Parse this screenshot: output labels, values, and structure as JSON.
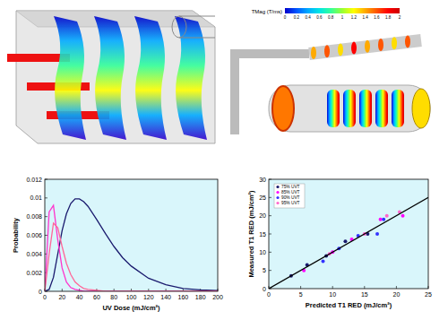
{
  "colorbar": {
    "label": "TMag (T/ms)",
    "ticks": [
      0,
      0.2,
      0.4,
      0.6,
      0.8,
      1,
      1.2,
      1.4,
      1.6,
      1.8,
      2
    ]
  },
  "chart_data": [
    {
      "type": "line",
      "x_label": "UV Dose (mJ/cm²)",
      "y_label": "Probability",
      "x": [
        0,
        5,
        10,
        15,
        20,
        25,
        30,
        35,
        40,
        45,
        50,
        60,
        70,
        80,
        90,
        100,
        120,
        140,
        160,
        180,
        200
      ],
      "series": [
        {
          "color": "#1a1a6e",
          "values": [
            0,
            0.0002,
            0.0015,
            0.004,
            0.0065,
            0.0083,
            0.0094,
            0.0099,
            0.0099,
            0.0096,
            0.0091,
            0.0077,
            0.0062,
            0.0048,
            0.0036,
            0.0027,
            0.0014,
            0.0007,
            0.0003,
            0.00015,
            7e-05
          ]
        },
        {
          "color": "#ff33cc",
          "values": [
            0,
            0.0085,
            0.0092,
            0.0055,
            0.0025,
            0.001,
            0.0004,
            0.0002,
            0.0001,
            0,
            0,
            0,
            0,
            0,
            0,
            0,
            0,
            0,
            0,
            0,
            0
          ]
        },
        {
          "color": "#ff6699",
          "values": [
            0,
            0.004,
            0.0073,
            0.0068,
            0.0048,
            0.003,
            0.0018,
            0.001,
            0.0006,
            0.0003,
            0.0002,
            0.0001,
            0,
            0,
            0,
            0,
            0,
            0,
            0,
            0,
            0
          ]
        }
      ],
      "xlim": [
        0,
        200
      ],
      "ylim": [
        0,
        0.012
      ],
      "xticks": [
        0,
        20,
        40,
        60,
        80,
        100,
        120,
        140,
        160,
        180,
        200
      ],
      "yticks": [
        0,
        0.002,
        0.004,
        0.006,
        0.008,
        0.01,
        0.012
      ]
    },
    {
      "type": "scatter",
      "x_label": "Predicted T1 RED (mJ/cm²)",
      "y_label": "Measured T1 RED (mJ/cm²)",
      "legend": "upper left",
      "series": [
        {
          "name": "75% UVT",
          "color": "#1a1a6e",
          "marker": "circle",
          "x": [
            3.5,
            6,
            9,
            12,
            15.5
          ],
          "values": [
            3.5,
            6.5,
            9,
            13,
            15
          ]
        },
        {
          "name": "85% UVT",
          "color": "#ff00ff",
          "marker": "circle",
          "x": [
            5.5,
            10,
            13,
            17.5,
            21
          ],
          "values": [
            5,
            10,
            13.5,
            19,
            20
          ]
        },
        {
          "name": "90% UVT",
          "color": "#3333ff",
          "marker": "circle",
          "x": [
            8.5,
            11,
            14,
            17,
            18
          ],
          "values": [
            7.5,
            11,
            14.5,
            15,
            19
          ]
        },
        {
          "name": "95% UVT",
          "color": "#ff66cc",
          "marker": "circle",
          "x": [
            9.5,
            15,
            18.5,
            20.5
          ],
          "values": [
            9.5,
            15,
            20,
            21
          ]
        },
        {
          "type": "line",
          "color": "#000000",
          "x": [
            0,
            25
          ],
          "values": [
            0,
            25
          ]
        }
      ],
      "xlim": [
        0,
        25
      ],
      "ylim": [
        0,
        30
      ],
      "xticks": [
        0,
        5,
        10,
        15,
        20,
        25
      ],
      "yticks": [
        0,
        5,
        10,
        15,
        20,
        25,
        30
      ]
    }
  ]
}
